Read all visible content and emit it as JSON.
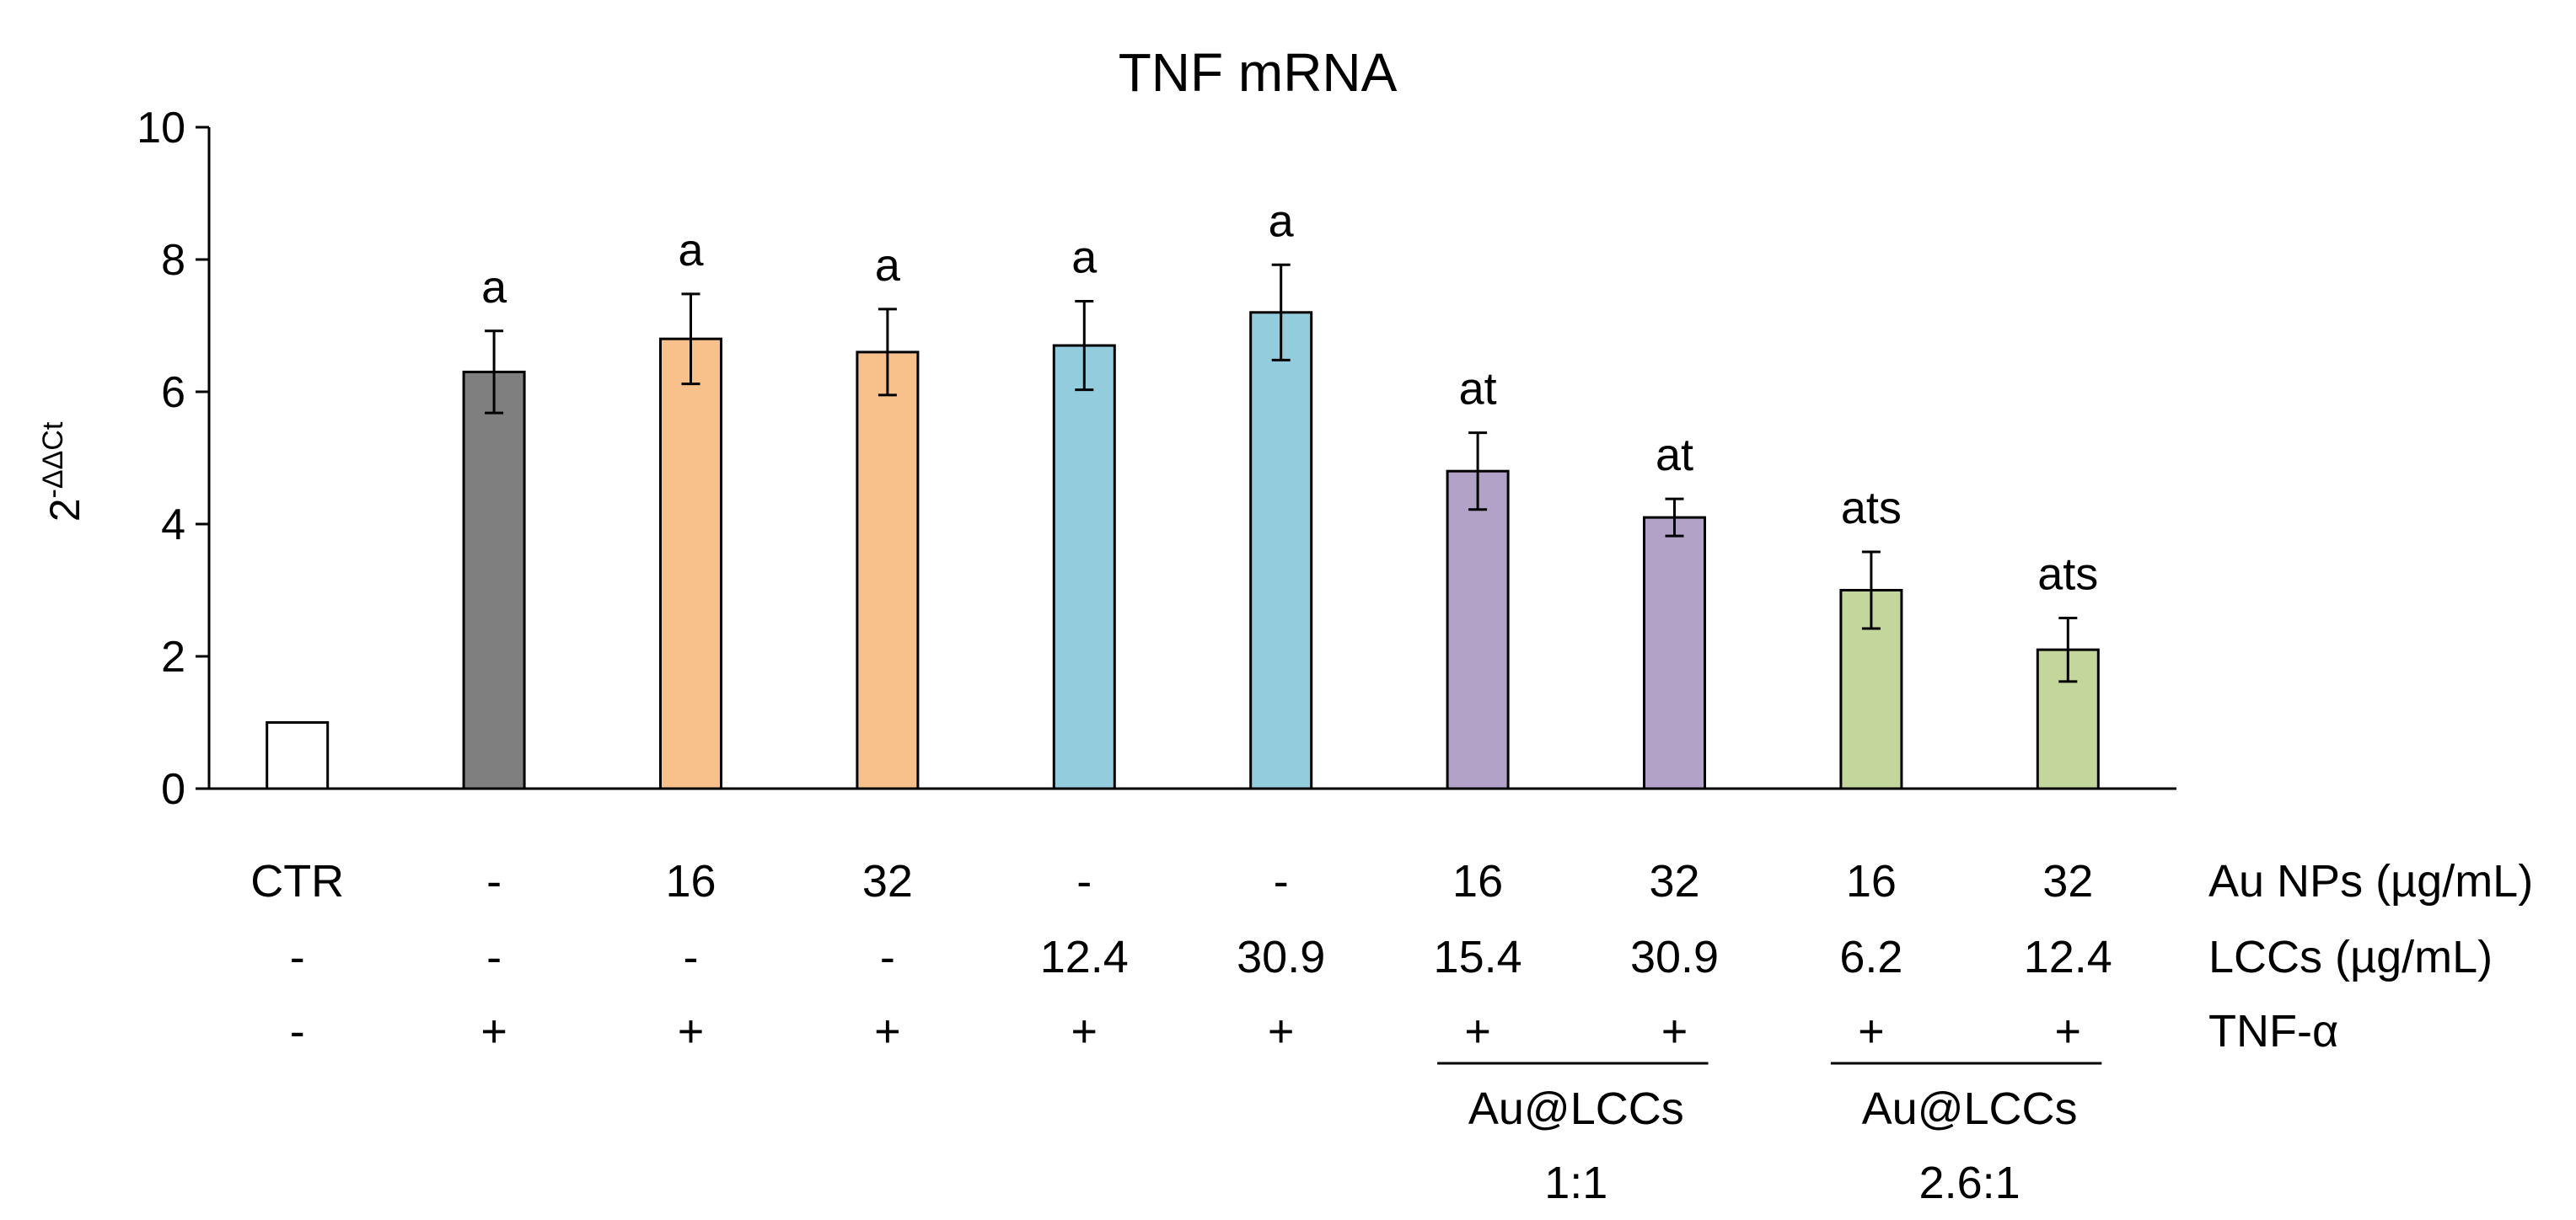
{
  "chart_data": {
    "type": "bar",
    "title": "TNF mRNA",
    "ylabel": {
      "base": "2",
      "superscript": "-ΔΔCt"
    },
    "xlabel": "",
    "ylim": [
      0,
      10
    ],
    "yticks": [
      0,
      2,
      4,
      6,
      8,
      10
    ],
    "grid": false,
    "bars": [
      {
        "value": 1.0,
        "error": 0,
        "sig": "",
        "color": "#ffffff",
        "au_nps": "CTR",
        "lccs": "-",
        "tnf": "-"
      },
      {
        "value": 6.3,
        "error": 0.62,
        "sig": "a",
        "color": "#7f7f7f",
        "au_nps": "-",
        "lccs": "-",
        "tnf": "+"
      },
      {
        "value": 6.8,
        "error": 0.68,
        "sig": "a",
        "color": "#f8c08a",
        "au_nps": "16",
        "lccs": "-",
        "tnf": "+"
      },
      {
        "value": 6.6,
        "error": 0.65,
        "sig": "a",
        "color": "#f8c08a",
        "au_nps": "32",
        "lccs": "-",
        "tnf": "+"
      },
      {
        "value": 6.7,
        "error": 0.67,
        "sig": "a",
        "color": "#93cddd",
        "au_nps": "-",
        "lccs": "12.4",
        "tnf": "+"
      },
      {
        "value": 7.2,
        "error": 0.72,
        "sig": "a",
        "color": "#93cddd",
        "au_nps": "-",
        "lccs": "30.9",
        "tnf": "+"
      },
      {
        "value": 4.8,
        "error": 0.58,
        "sig": "at",
        "color": "#b3a2c7",
        "au_nps": "16",
        "lccs": "15.4",
        "tnf": "+"
      },
      {
        "value": 4.1,
        "error": 0.28,
        "sig": "at",
        "color": "#b3a2c7",
        "au_nps": "32",
        "lccs": "30.9",
        "tnf": "+"
      },
      {
        "value": 3.0,
        "error": 0.58,
        "sig": "ats",
        "color": "#c3d69b",
        "au_nps": "16",
        "lccs": "6.2",
        "tnf": "+"
      },
      {
        "value": 2.1,
        "error": 0.48,
        "sig": "ats",
        "color": "#c3d69b",
        "au_nps": "32",
        "lccs": "12.4",
        "tnf": "+"
      }
    ],
    "row_labels": [
      "Au NPs (µg/mL)",
      "LCCs (µg/mL)",
      "TNF-α"
    ],
    "groups": [
      {
        "line1": "Au@LCCs",
        "line2": "1:1",
        "from": 6,
        "to": 7
      },
      {
        "line1": "Au@LCCs",
        "line2": "2.6:1",
        "from": 8,
        "to": 9
      }
    ]
  }
}
